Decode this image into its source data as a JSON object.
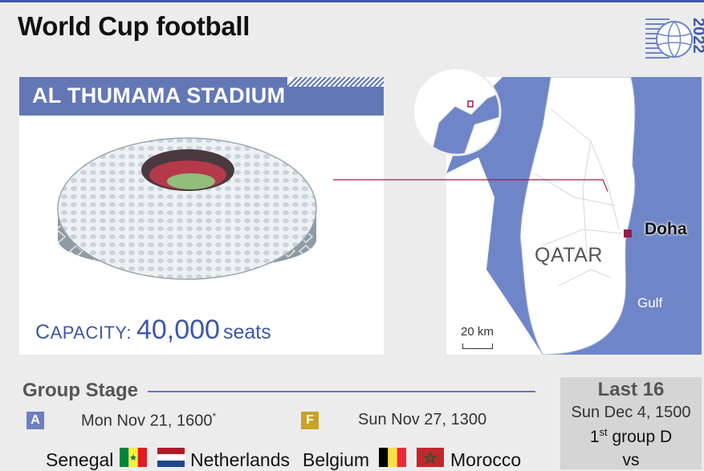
{
  "header": {
    "title": "World Cup football",
    "year": "2022"
  },
  "stadium": {
    "name": "AL THUMAMA STADIUM",
    "capacity_label_initial": "C",
    "capacity_label_rest": "APACITY:",
    "capacity_value": "40,000",
    "capacity_unit": "seats"
  },
  "map": {
    "city": "Doha",
    "country": "QATAR",
    "sea": "Gulf",
    "scale": "20 km",
    "colors": {
      "sea": "#6e86c7",
      "land": "#ffffff",
      "marker": "#9b1b4a"
    }
  },
  "group_stage": {
    "title": "Group Stage",
    "matches": [
      {
        "group": "A",
        "date": "Mon Nov 21, 1600",
        "footnote": "*",
        "home": "Senegal",
        "away": "Netherlands",
        "color": "#6c7fc1"
      },
      {
        "group": "F",
        "date": "Sun Nov 27, 1300",
        "footnote": "",
        "home": "Belgium",
        "away": "Morocco",
        "color": "#c9a227"
      }
    ]
  },
  "last16": {
    "title": "Last 16",
    "date": "Sun Dec 4, 1500",
    "match_ordinal": "1",
    "match_ordinal_suffix": "st",
    "match_rest": " group D",
    "vs": "vs"
  }
}
